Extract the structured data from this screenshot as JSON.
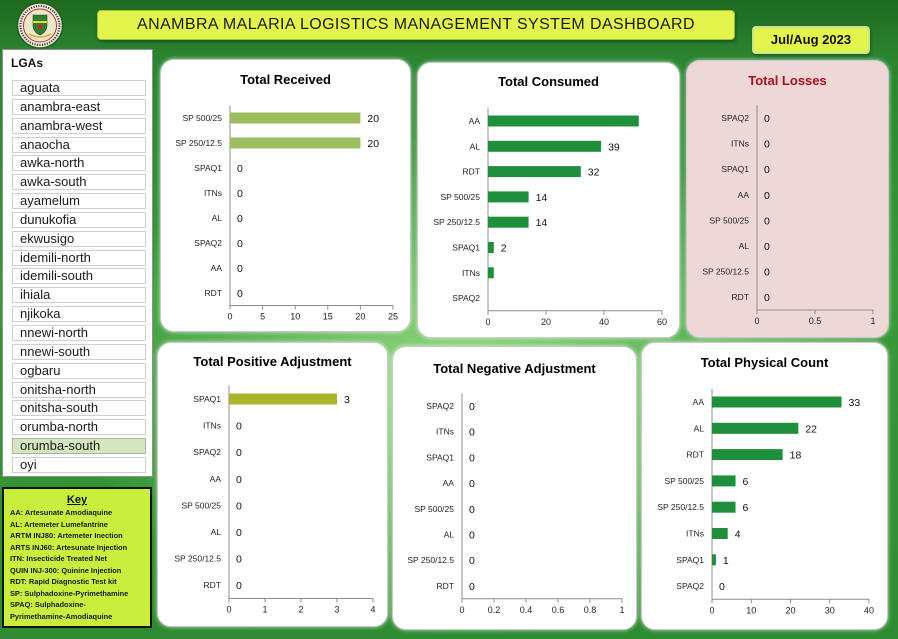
{
  "header": {
    "logo_icon": "state-seal-icon",
    "title": "ANAMBRA MALARIA LOGISTICS MANAGEMENT SYSTEM DASHBOARD",
    "period": "Jul/Aug 2023"
  },
  "colors": {
    "banner": "#e3f44c",
    "key_box": "#c8ef3e",
    "selected_item": "#d3e6c0"
  },
  "slicer": {
    "title": "LGAs",
    "selected_index": 19,
    "items": [
      "aguata",
      "anambra-east",
      "anambra-west",
      "anaocha",
      "awka-north",
      "awka-south",
      "ayamelum",
      "dunukofia",
      "ekwusigo",
      "idemili-north",
      "idemili-south",
      "ihiala",
      "njikoka",
      "nnewi-north",
      "nnewi-south",
      "ogbaru",
      "onitsha-north",
      "onitsha-south",
      "orumba-north",
      "orumba-south",
      "oyi"
    ]
  },
  "key": {
    "title": "Key",
    "lines": [
      "AA: Artesunate Amodiaquine",
      "AL: Artemeter Lumefantrine",
      "ARTM INJ80: Artemeter Inection",
      "ARTS INJ60: Artesunate Injection",
      "ITN: Insecticide Treated Net",
      "QUIN INJ-300: Quinine Injection",
      "RDT: Rapid Diagnostic Test kit",
      "SP: Sulphadoxine-Pyrimethamine",
      "SPAQ: Sulphadoxine-",
      "Pyrimethamine-Amodiaquine"
    ]
  },
  "chart_data": [
    {
      "type": "bar",
      "orientation": "horizontal",
      "title": "Total Received",
      "categories": [
        "SP 500/25",
        "SP 250/12.5",
        "SPAQ1",
        "ITNs",
        "AL",
        "SPAQ2",
        "AA",
        "RDT"
      ],
      "values": [
        20,
        20,
        0,
        0,
        0,
        0,
        0,
        0
      ],
      "xlim": [
        0,
        25
      ],
      "xticks": [
        0,
        5,
        10,
        15,
        20,
        25
      ],
      "grid": false,
      "bar_color": "#9dbe5e",
      "title_color": "#000000",
      "panel_color": "#ffffff"
    },
    {
      "type": "bar",
      "orientation": "horizontal",
      "title": "Total Consumed",
      "categories": [
        "AA",
        "AL",
        "RDT",
        "SP 500/25",
        "SP 250/12.5",
        "SPAQ1",
        "ITNs",
        "SPAQ2"
      ],
      "values": [
        52,
        39,
        32,
        14,
        14,
        2,
        2,
        0
      ],
      "data_labels": [
        null,
        39,
        32,
        14,
        14,
        2,
        null,
        null
      ],
      "xlim": [
        0,
        60
      ],
      "xticks": [
        0,
        20,
        40,
        60
      ],
      "grid": false,
      "bar_color": "#1f8f3c",
      "title_color": "#000000",
      "panel_color": "#ffffff"
    },
    {
      "type": "bar",
      "orientation": "horizontal",
      "title": "Total Losses",
      "categories": [
        "SPAQ2",
        "ITNs",
        "SPAQ1",
        "AA",
        "SP 500/25",
        "AL",
        "SP 250/12.5",
        "RDT"
      ],
      "values": [
        0,
        0,
        0,
        0,
        0,
        0,
        0,
        0
      ],
      "xlim": [
        0,
        1
      ],
      "xticks": [
        0,
        0.5,
        1
      ],
      "grid": false,
      "bar_color": "#1f8f3c",
      "title_color": "#a8101a",
      "panel_color": "#eed7d7"
    },
    {
      "type": "bar",
      "orientation": "horizontal",
      "title": "Total Positive Adjustment",
      "categories": [
        "SPAQ1",
        "ITNs",
        "SPAQ2",
        "AA",
        "SP 500/25",
        "AL",
        "SP 250/12.5",
        "RDT"
      ],
      "values": [
        3,
        0,
        0,
        0,
        0,
        0,
        0,
        0
      ],
      "xlim": [
        0,
        4
      ],
      "xticks": [
        0,
        1,
        2,
        3,
        4
      ],
      "grid": false,
      "bar_color": "#a9b52b",
      "title_color": "#000000",
      "panel_color": "#ffffff"
    },
    {
      "type": "bar",
      "orientation": "horizontal",
      "title": "Total Negative Adjustment",
      "categories": [
        "SPAQ2",
        "ITNs",
        "SPAQ1",
        "AA",
        "SP 500/25",
        "AL",
        "SP 250/12.5",
        "RDT"
      ],
      "values": [
        0,
        0,
        0,
        0,
        0,
        0,
        0,
        0
      ],
      "xlim": [
        0,
        1
      ],
      "xticks": [
        0,
        0.2,
        0.4,
        0.6,
        0.8,
        1
      ],
      "grid": false,
      "bar_color": "#1f8f3c",
      "title_color": "#000000",
      "panel_color": "#ffffff"
    },
    {
      "type": "bar",
      "orientation": "horizontal",
      "title": "Total Physical Count",
      "categories": [
        "AA",
        "AL",
        "RDT",
        "SP 500/25",
        "SP 250/12.5",
        "ITNs",
        "SPAQ1",
        "SPAQ2"
      ],
      "values": [
        33,
        22,
        18,
        6,
        6,
        4,
        1,
        0
      ],
      "xlim": [
        0,
        40
      ],
      "xticks": [
        0,
        10,
        20,
        30,
        40
      ],
      "grid": false,
      "bar_color": "#1f8f3c",
      "title_color": "#000000",
      "panel_color": "#ffffff"
    }
  ]
}
